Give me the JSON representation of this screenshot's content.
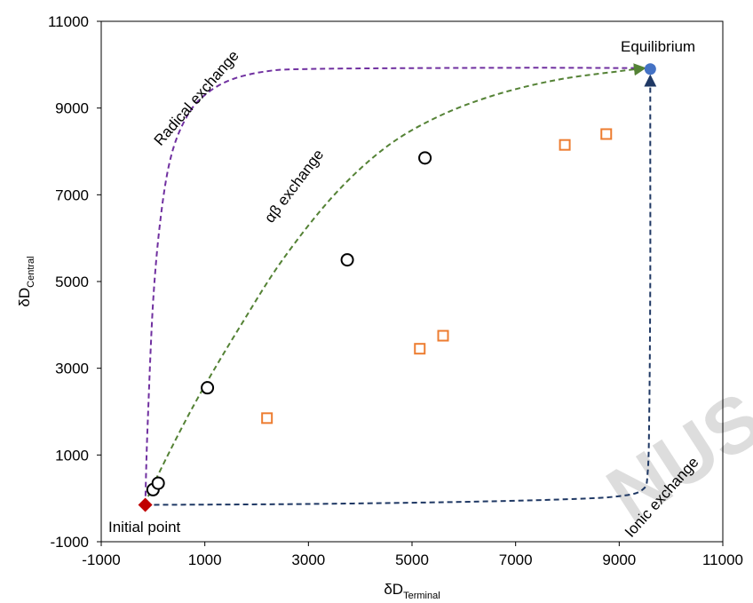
{
  "chart_data": {
    "type": "scatter",
    "xlabel": {
      "main": "δD",
      "sub": "Terminal"
    },
    "ylabel": {
      "main": "δD",
      "sub": "Central"
    },
    "xlim": [
      -1000,
      11000
    ],
    "ylim": [
      -1000,
      11000
    ],
    "xticks": [
      -1000,
      1000,
      3000,
      5000,
      7000,
      9000,
      11000
    ],
    "yticks": [
      -1000,
      1000,
      3000,
      5000,
      7000,
      9000,
      11000
    ],
    "grid": false,
    "series": [
      {
        "marker": "circle-open",
        "color": "#000000",
        "points": [
          [
            0,
            200
          ],
          [
            100,
            350
          ],
          [
            1050,
            2550
          ],
          [
            3750,
            5500
          ],
          [
            5250,
            7850
          ]
        ]
      },
      {
        "marker": "square-open",
        "color": "#ed7d31",
        "points": [
          [
            2200,
            1850
          ],
          [
            5150,
            3450
          ],
          [
            5600,
            3750
          ],
          [
            7950,
            8150
          ],
          [
            8750,
            8400
          ]
        ]
      }
    ],
    "special_points": [
      {
        "label": "Initial point",
        "x": -150,
        "y": -150,
        "marker": "diamond",
        "color": "#c00000"
      },
      {
        "label": "Equilibrium",
        "x": 9600,
        "y": 9900,
        "marker": "circle",
        "color": "#4472c4"
      }
    ],
    "curves": [
      {
        "label": "Radical exchange",
        "color": "#7030a0",
        "points": [
          [
            -150,
            -150
          ],
          [
            -110,
            1500
          ],
          [
            0,
            4500
          ],
          [
            150,
            6500
          ],
          [
            350,
            7900
          ],
          [
            650,
            8800
          ],
          [
            1000,
            9300
          ],
          [
            1500,
            9650
          ],
          [
            2200,
            9850
          ],
          [
            3000,
            9900
          ],
          [
            5000,
            9920
          ],
          [
            7500,
            9930
          ],
          [
            9500,
            9920
          ]
        ]
      },
      {
        "label": "αβ exchange",
        "color": "#548235",
        "points": [
          [
            -150,
            -150
          ],
          [
            0,
            300
          ],
          [
            500,
            1500
          ],
          [
            1000,
            2600
          ],
          [
            1700,
            4000
          ],
          [
            2500,
            5500
          ],
          [
            3500,
            7000
          ],
          [
            4500,
            8100
          ],
          [
            5500,
            8800
          ],
          [
            6600,
            9300
          ],
          [
            7800,
            9650
          ],
          [
            9000,
            9850
          ],
          [
            9500,
            9920
          ]
        ]
      },
      {
        "label": "Ionic exchange",
        "color": "#1f3864",
        "points": [
          [
            -150,
            -150
          ],
          [
            3000,
            -130
          ],
          [
            6000,
            -80
          ],
          [
            8000,
            -20
          ],
          [
            9000,
            50
          ],
          [
            9450,
            200
          ],
          [
            9550,
            600
          ],
          [
            9580,
            2000
          ],
          [
            9600,
            5000
          ],
          [
            9600,
            8000
          ],
          [
            9600,
            9750
          ]
        ]
      }
    ],
    "watermark": "NUS"
  }
}
